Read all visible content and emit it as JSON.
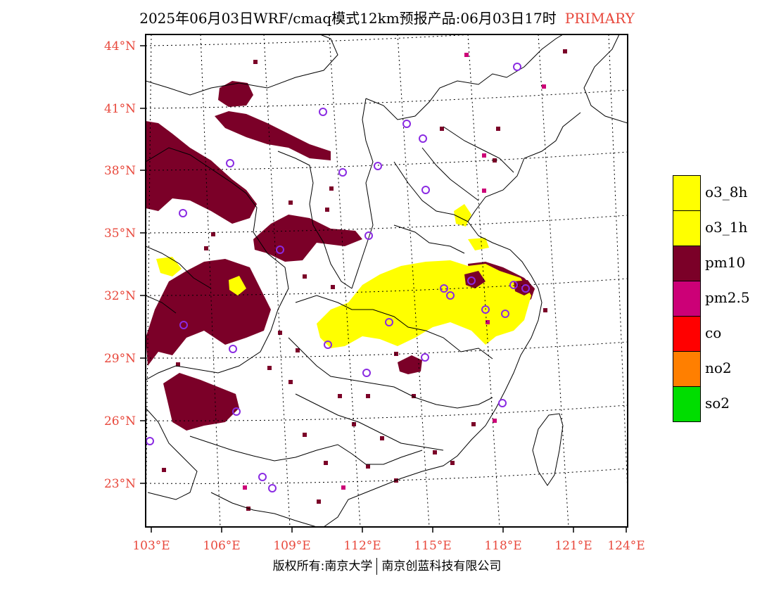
{
  "title": {
    "main": "2025年06月03日WRF/cmaq模式12km预报产品:06月03日17时",
    "tag": "PRIMARY"
  },
  "axes": {
    "lat_labels": [
      "44°N",
      "41°N",
      "38°N",
      "35°N",
      "32°N",
      "29°N",
      "26°N",
      "23°N"
    ],
    "lon_labels": [
      "103°E",
      "106°E",
      "109°E",
      "112°E",
      "115°E",
      "118°E",
      "121°E",
      "124°E"
    ],
    "lat_values": [
      44,
      41,
      38,
      35,
      32,
      29,
      26,
      23
    ],
    "lon_values": [
      103,
      106,
      109,
      112,
      115,
      118,
      121,
      124
    ],
    "grid": "dotted"
  },
  "legend": {
    "items": [
      {
        "label": "o3_8h",
        "color": "#ffff00"
      },
      {
        "label": "o3_1h",
        "color": "#ffff00"
      },
      {
        "label": "pm10",
        "color": "#7b0028"
      },
      {
        "label": "pm2.5",
        "color": "#cc0077"
      },
      {
        "label": "co",
        "color": "#ff0000"
      },
      {
        "label": "no2",
        "color": "#ff7f00"
      },
      {
        "label": "so2",
        "color": "#00dd00"
      }
    ]
  },
  "stations": {
    "color": "#8a2be2",
    "count": 29
  },
  "copyright": {
    "left": "版权所有:南京大学",
    "right": "南京创蓝科技有限公司"
  }
}
